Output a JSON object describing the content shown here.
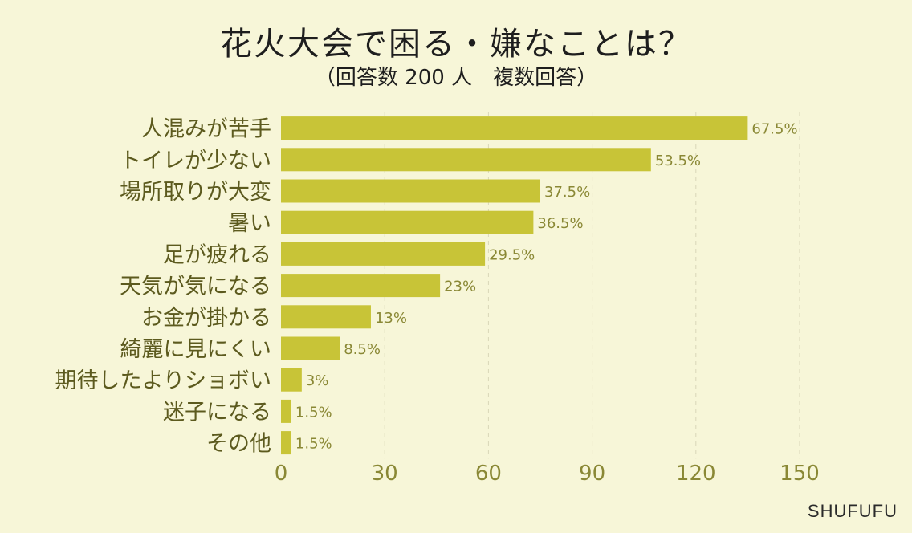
{
  "title": "花火大会で困る・嫌なことは？",
  "subtitle": "（回答数 200 人　複数回答）",
  "watermark": "SHUFUFU",
  "colors": {
    "background": "#f7f6d8",
    "bar": "#c8c437",
    "axis_text": "#8a8835",
    "label_text": "#5c5a1e",
    "grid": "#d9d7b8"
  },
  "chart_data": {
    "type": "bar",
    "orientation": "horizontal",
    "categories": [
      "人混みが苦手",
      "トイレが少ない",
      "場所取りが大変",
      "暑い",
      "足が疲れる",
      "天気が気になる",
      "お金が掛かる",
      "綺麗に見にくい",
      "期待したよりショボい",
      "迷子になる",
      "その他"
    ],
    "values": [
      135,
      107,
      75,
      73,
      59,
      46,
      26,
      17,
      6,
      3,
      3
    ],
    "value_labels": [
      "67.5%",
      "53.5%",
      "37.5%",
      "36.5%",
      "29.5%",
      "23%",
      "13%",
      "8.5%",
      "3%",
      "1.5%",
      "1.5%"
    ],
    "xlim": [
      0,
      150
    ],
    "xticks": [
      0,
      30,
      60,
      90,
      120,
      150
    ],
    "grid": true
  }
}
